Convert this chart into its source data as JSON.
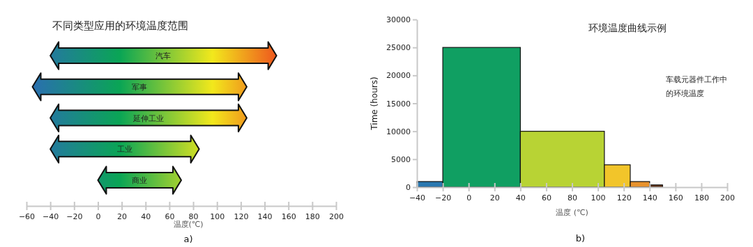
{
  "chart_data": [
    {
      "type": "bar",
      "orientation": "horizontal",
      "title": "不同类型应用的环境温度范围",
      "xlabel": "温度(℃)",
      "categories": [
        "汽车",
        "军事",
        "延伸工业",
        "工业",
        "商业"
      ],
      "base": [
        -40,
        -55,
        -40,
        -40,
        0
      ],
      "values": [
        190,
        180,
        165,
        125,
        70
      ],
      "xlim": [
        -60,
        200
      ],
      "xticks": [
        -60,
        -40,
        -20,
        0,
        20,
        40,
        60,
        80,
        100,
        120,
        140,
        160,
        180,
        200
      ],
      "tick_labels": "x",
      "annotations": [
        "a)"
      ]
    },
    {
      "type": "histogram",
      "title": "环境温度曲线示例",
      "xlabel": "温度 (℃)",
      "ylabel": "Time (hours)",
      "bins": [
        -40,
        -20,
        40,
        105,
        125,
        140,
        150
      ],
      "values": [
        1000,
        25000,
        10000,
        4000,
        1000,
        400
      ],
      "colors": [
        "#2a78b0",
        "#109f62",
        "#b8d334",
        "#f2c52a",
        "#e8922c",
        "#6b3a1e"
      ],
      "xlim": [
        -40,
        200
      ],
      "xticks": [
        -40,
        -20,
        0,
        20,
        40,
        60,
        80,
        100,
        120,
        140,
        160,
        180,
        200
      ],
      "ylim": [
        0,
        30000
      ],
      "yticks": [
        0,
        5000,
        10000,
        15000,
        20000,
        25000,
        30000
      ],
      "annotations": [
        "车载元器件工作中的环境温度",
        "b)"
      ]
    }
  ]
}
